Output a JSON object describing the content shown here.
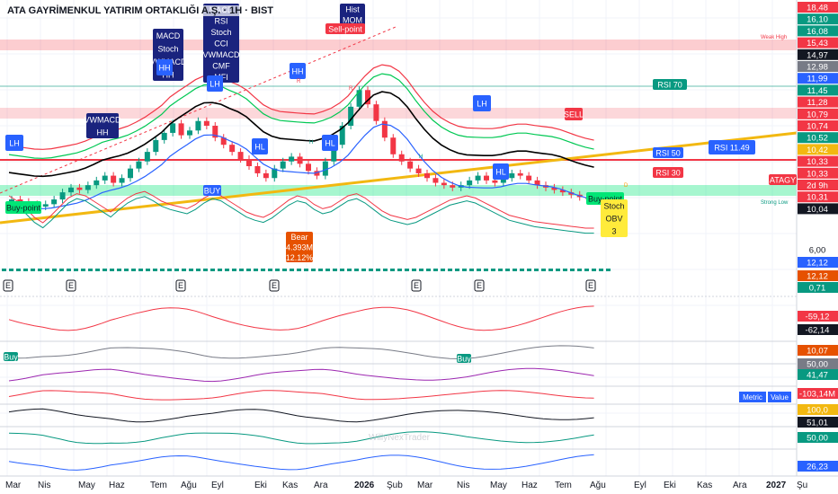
{
  "header": {
    "title": "ATA GAYRİMENKUL YATIRIM ORTAKLIĞI A.Ş. · 1H · BIST"
  },
  "chart_data": {
    "type": "line",
    "title": "ATA GAYRİMENKUL YATIRIM ORTAKLIĞI A.Ş. · 1H · BIST",
    "x_tick_labels": [
      "Mar",
      "Nis",
      "May",
      "Haz",
      "Tem",
      "Ağu",
      "Eyl",
      "Eki",
      "Kas",
      "Ara",
      "2026",
      "Şub",
      "Mar",
      "Nis",
      "May",
      "Haz",
      "Tem",
      "Ağu",
      "Eyl",
      "Eki",
      "Kas",
      "Ara",
      "2027",
      "Şu"
    ],
    "price_axis_labels": [
      {
        "text": "18,48",
        "color": "#f23645"
      },
      {
        "text": "16,10",
        "color": "#089981"
      },
      {
        "text": "16,08",
        "color": "#089981"
      },
      {
        "text": "15,43",
        "color": "#f23645"
      },
      {
        "text": "14,97",
        "color": "#131722"
      },
      {
        "text": "12,98",
        "color": "#787b86"
      },
      {
        "text": "11,99",
        "color": "#2962ff"
      },
      {
        "text": "11,45",
        "color": "#089981"
      },
      {
        "text": "11,28",
        "color": "#f23645"
      },
      {
        "text": "10,79",
        "color": "#f23645"
      },
      {
        "text": "10,74",
        "color": "#f23645"
      },
      {
        "text": "10,52",
        "color": "#089981"
      },
      {
        "text": "10,42",
        "color": "#f2b811"
      },
      {
        "text": "10,33",
        "color": "#f23645"
      },
      {
        "text": "10,33",
        "color": "#f23645"
      },
      {
        "text": "2d 9h",
        "color": "#f23645"
      },
      {
        "text": "10,31",
        "color": "#f23645"
      },
      {
        "text": "10,04",
        "color": "#131722"
      }
    ],
    "lower_axis_labels": [
      {
        "text": "6,00",
        "color": "#ffffff",
        "fg": "#131722"
      },
      {
        "text": "12,12",
        "color": "#2962ff"
      },
      {
        "text": "12,12",
        "color": "#e65100"
      },
      {
        "text": "0,71",
        "color": "#089981"
      },
      {
        "text": "-59,12",
        "color": "#f23645"
      },
      {
        "text": "-62,14",
        "color": "#131722"
      },
      {
        "text": "10,07",
        "color": "#e65100"
      },
      {
        "text": "50,00",
        "color": "#787b86"
      },
      {
        "text": "41,47",
        "color": "#089981"
      },
      {
        "text": "-103,14M",
        "color": "#f23645"
      },
      {
        "text": "100,0",
        "color": "#f2b811"
      },
      {
        "text": "51,01",
        "color": "#131722"
      },
      {
        "text": "50,00",
        "color": "#089981"
      },
      {
        "text": "26,23",
        "color": "#2962ff"
      }
    ],
    "annotations": [
      {
        "text": "VWMACD\nHH",
        "kind": "label",
        "color": "#1a237e"
      },
      {
        "text": "MACD\nStoch\nVWMACD\nHH",
        "kind": "label",
        "color": "#1a237e"
      },
      {
        "text": "MACD\nRSI\nStoch\nCCI\nVWMACD\nCMF\nMFI",
        "kind": "label",
        "color": "#1a237e"
      },
      {
        "text": "Hist\nMOM",
        "kind": "label",
        "color": "#1a237e"
      },
      {
        "text": "Sell-point",
        "kind": "label",
        "color": "#f23645"
      },
      {
        "text": "LH",
        "kind": "label",
        "color": "#2962ff"
      },
      {
        "text": "LH",
        "kind": "label",
        "color": "#2962ff"
      },
      {
        "text": "LH",
        "kind": "label",
        "color": "#2962ff"
      },
      {
        "text": "HL",
        "kind": "label",
        "color": "#2962ff"
      },
      {
        "text": "HL",
        "kind": "label",
        "color": "#2962ff"
      },
      {
        "text": "HL",
        "kind": "label",
        "color": "#2962ff"
      },
      {
        "text": "HH",
        "kind": "label",
        "color": "#2962ff"
      },
      {
        "text": "HH",
        "kind": "label",
        "color": "#2962ff"
      },
      {
        "text": "RSI 70",
        "kind": "tag",
        "color": "#089981"
      },
      {
        "text": "RSI 50",
        "kind": "tag",
        "color": "#2962ff"
      },
      {
        "text": "RSI 30",
        "kind": "tag",
        "color": "#f23645"
      },
      {
        "text": "SELL",
        "kind": "tag",
        "color": "#f23645"
      },
      {
        "text": "BUY",
        "kind": "tag",
        "color": "#2962ff"
      },
      {
        "text": "Buy-point",
        "kind": "label",
        "color": "#00e676"
      },
      {
        "text": "Buy-point",
        "kind": "label",
        "color": "#00e676"
      },
      {
        "text": "Stoch\nOBV\n3",
        "kind": "label",
        "color": "#ffeb3b"
      },
      {
        "text": "Bear\n4.393M\n12.12%",
        "kind": "label",
        "color": "#e65100"
      },
      {
        "text": "ATAGY",
        "kind": "tag",
        "color": "#f23645"
      },
      {
        "text": "RSI 11.49",
        "kind": "tag",
        "color": "#2962ff"
      },
      {
        "text": "Metric",
        "kind": "table",
        "color": "#2962ff"
      },
      {
        "text": "Value",
        "kind": "table",
        "color": "#2962ff"
      },
      {
        "text": "Weak High",
        "kind": "note",
        "color": "#f23645"
      },
      {
        "text": "Strong Low",
        "kind": "note",
        "color": "#089981"
      },
      {
        "text": "D",
        "kind": "note",
        "color": "#ff9800"
      },
      {
        "text": "R",
        "kind": "note",
        "color": "#f23645"
      },
      {
        "text": "R",
        "kind": "note",
        "color": "#f23645"
      },
      {
        "text": "H",
        "kind": "note",
        "color": "#089981"
      },
      {
        "text": "H",
        "kind": "note",
        "color": "#089981"
      },
      {
        "text": "E",
        "kind": "event",
        "color": "#131722"
      },
      {
        "text": "E",
        "kind": "event",
        "color": "#131722"
      },
      {
        "text": "E",
        "kind": "event",
        "color": "#131722"
      },
      {
        "text": "E",
        "kind": "event",
        "color": "#131722"
      },
      {
        "text": "E",
        "kind": "event",
        "color": "#131722"
      },
      {
        "text": "E",
        "kind": "event",
        "color": "#131722"
      },
      {
        "text": "E",
        "kind": "event",
        "color": "#131722"
      },
      {
        "text": "Buy",
        "kind": "label",
        "color": "#089981"
      },
      {
        "text": "Buy",
        "kind": "label",
        "color": "#089981"
      },
      {
        "text": "WillyNexTrader",
        "kind": "watermark",
        "color": "#b2b5be"
      }
    ],
    "price_series": {
      "name": "",
      "y": [
        10.3,
        10.2,
        10.1,
        10.0,
        10.1,
        10.3,
        10.6,
        10.8,
        10.7,
        10.9,
        11.1,
        11.3,
        11.0,
        11.2,
        11.6,
        11.9,
        12.3,
        12.8,
        13.1,
        13.5,
        13.0,
        13.2,
        13.6,
        13.4,
        12.9,
        12.6,
        12.3,
        12.0,
        11.7,
        11.4,
        11.2,
        11.6,
        11.9,
        12.1,
        11.8,
        11.5,
        11.3,
        11.9,
        12.6,
        13.4,
        14.2,
        14.9,
        14.3,
        13.6,
        12.9,
        12.2,
        11.9,
        11.6,
        11.4,
        11.2,
        11.0,
        10.9,
        10.8,
        10.9,
        11.1,
        11.3,
        11.1,
        11.0,
        11.2,
        11.4,
        11.3,
        11.1,
        10.9,
        10.8,
        10.7,
        10.6,
        10.5,
        10.4,
        10.35,
        10.33
      ]
    },
    "candles_close": [
      10.3,
      10.2,
      10.1,
      10.0,
      10.1,
      10.3,
      10.6,
      10.8,
      10.7,
      10.9,
      11.1,
      11.3,
      11.0,
      11.2,
      11.6,
      11.9,
      12.3,
      12.8,
      13.1,
      13.5,
      13.0,
      13.2,
      13.6,
      13.4,
      12.9,
      12.6,
      12.3,
      12.0,
      11.7,
      11.4,
      11.2,
      11.6,
      11.9,
      12.1,
      11.8,
      11.5,
      11.3,
      11.9,
      12.6,
      13.4,
      14.2,
      14.9,
      14.3,
      13.6,
      12.9,
      12.2,
      11.9,
      11.6,
      11.4,
      11.2,
      11.0,
      10.9,
      10.8,
      10.9,
      11.1,
      11.3,
      11.1,
      11.0,
      11.2,
      11.4,
      11.3,
      11.1,
      10.9,
      10.8,
      10.7,
      10.6,
      10.5,
      10.4,
      10.35,
      10.33
    ],
    "oscillator_1": [
      60,
      55,
      48,
      40,
      35,
      42,
      50,
      58,
      62,
      60,
      55,
      50,
      45,
      52,
      58,
      62,
      64,
      60,
      55,
      52,
      50,
      48,
      52,
      58,
      62,
      60,
      55,
      50,
      45,
      42,
      40,
      44,
      50,
      56,
      60,
      58,
      52,
      48,
      50,
      55,
      60,
      62,
      58,
      52,
      46,
      42,
      40,
      38,
      40,
      44,
      48,
      52,
      56,
      58,
      60,
      58,
      54,
      50,
      46,
      42,
      40,
      38,
      36,
      35,
      34,
      33,
      32,
      31,
      30,
      30
    ],
    "ylim_price": [
      10.0,
      18.5
    ],
    "grid": true,
    "legend": "none"
  }
}
